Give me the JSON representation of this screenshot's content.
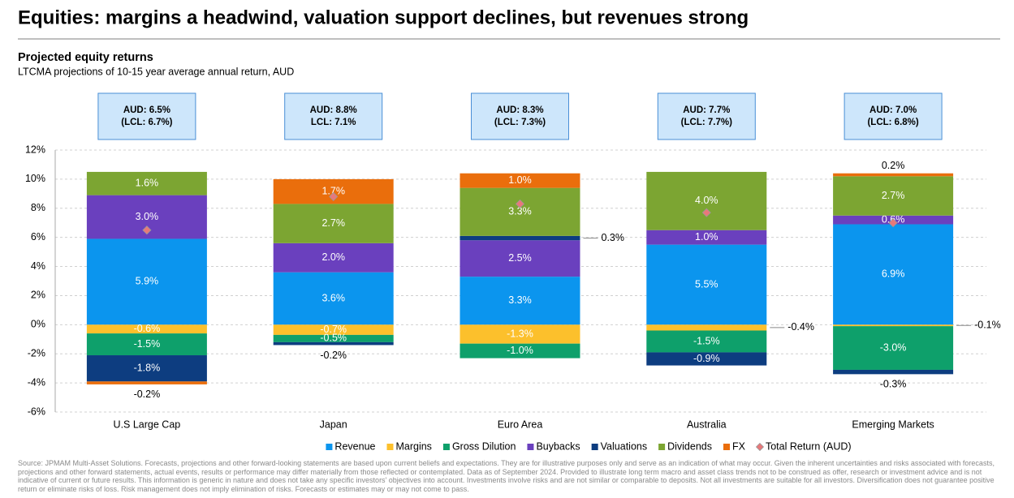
{
  "chart_data": {
    "type": "stacked-bar",
    "title": "Equities: margins a headwind, valuation support declines, but revenues strong",
    "subtitle": "Projected equity returns",
    "caption": "LTCMA projections of 10-15 year average annual return, AUD",
    "categories": [
      "U.S Large Cap",
      "Japan",
      "Euro Area",
      "Australia",
      "Emerging Markets"
    ],
    "callouts": [
      [
        "AUD: 6.5%",
        "(LCL: 6.7%)"
      ],
      [
        "AUD: 8.8%",
        "LCL: 7.1%"
      ],
      [
        "AUD: 8.3%",
        "(LCL: 7.3%)"
      ],
      [
        "AUD: 7.7%",
        "(LCL: 7.7%)"
      ],
      [
        "AUD: 7.0%",
        "(LCL: 6.8%)"
      ]
    ],
    "series": [
      {
        "name": "Revenue",
        "color": "#0b95ee",
        "values": [
          5.9,
          3.6,
          3.3,
          5.5,
          6.9
        ],
        "value_labels": [
          "5.9%",
          "3.6%",
          "3.3%",
          "5.5%",
          "6.9%"
        ]
      },
      {
        "name": "Margins",
        "color": "#fcc02c",
        "values": [
          -0.6,
          -0.7,
          -1.3,
          -0.4,
          -0.1
        ],
        "value_labels": [
          "-0.6%",
          "-0.7%",
          "-1.3%",
          "-0.4%",
          "-0.1%"
        ]
      },
      {
        "name": "Gross Dilution",
        "color": "#0ea06b",
        "values": [
          -1.5,
          -0.5,
          -1.0,
          -1.5,
          -3.0
        ],
        "value_labels": [
          "-1.5%",
          "-0.5%",
          "-1.0%",
          "-1.5%",
          "-3.0%"
        ]
      },
      {
        "name": "Buybacks",
        "color": "#6a40be",
        "values": [
          3.0,
          2.0,
          2.5,
          1.0,
          0.6
        ],
        "value_labels": [
          "3.0%",
          "2.0%",
          "2.5%",
          "1.0%",
          "0.6%"
        ]
      },
      {
        "name": "Valuations",
        "color": "#0d3d80",
        "values": [
          -1.8,
          -0.2,
          0.3,
          -0.9,
          -0.3
        ],
        "value_labels": [
          "-1.8%",
          "-0.2%",
          "0.3%",
          "-0.9%",
          "-0.3%"
        ]
      },
      {
        "name": "Dividends",
        "color": "#7ca532",
        "values": [
          1.6,
          2.7,
          3.3,
          4.0,
          2.7
        ],
        "value_labels": [
          "1.6%",
          "2.7%",
          "3.3%",
          "4.0%",
          "2.7%"
        ]
      },
      {
        "name": "FX",
        "color": "#ea6e0c",
        "values": [
          -0.2,
          1.7,
          1.0,
          null,
          0.2
        ],
        "value_labels": [
          "-0.2%",
          "1.7%",
          "1.0%",
          null,
          "0.2%"
        ]
      }
    ],
    "total": {
      "name": "Total Return (AUD)",
      "color": "#e8787a",
      "values": [
        6.5,
        8.8,
        8.3,
        7.7,
        7.0
      ]
    },
    "ylim": [
      -6,
      12
    ],
    "yticks": [
      {
        "value": -6,
        "label": "-6%"
      },
      {
        "value": -4,
        "label": "-4%"
      },
      {
        "value": -2,
        "label": "-2%"
      },
      {
        "value": 0,
        "label": "0%"
      },
      {
        "value": 2,
        "label": "2%"
      },
      {
        "value": 4,
        "label": "4%"
      },
      {
        "value": 6,
        "label": "6%"
      },
      {
        "value": 8,
        "label": "8%"
      },
      {
        "value": 10,
        "label": "10%"
      },
      {
        "value": 12,
        "label": "12%"
      }
    ],
    "grid": true,
    "footnote": "Source: JPMAM Multi-Asset Solutions. Forecasts, projections and other forward-looking statements are based upon current beliefs and expectations. They are for illustrative purposes only and serve as an indication of what may occur. Given the inherent uncertainties and risks associated with forecasts, projections and other forward statements, actual events, results or performance may differ materially from those reflected or contemplated. Data as of September 2024. Provided to illustrate long term macro and asset class trends not to be construed as offer, research or investment advice and is not indicative of current or future results. This information is generic in nature and does not take any specific investors' objectives into account. Investments involve risks and are not similar or comparable to deposits. Not all investments are suitable for all investors. Diversification does not guarantee positive return or eliminate risks of loss. Risk management does not imply elimination of risks. Forecasts or estimates may or may not come to pass."
  }
}
